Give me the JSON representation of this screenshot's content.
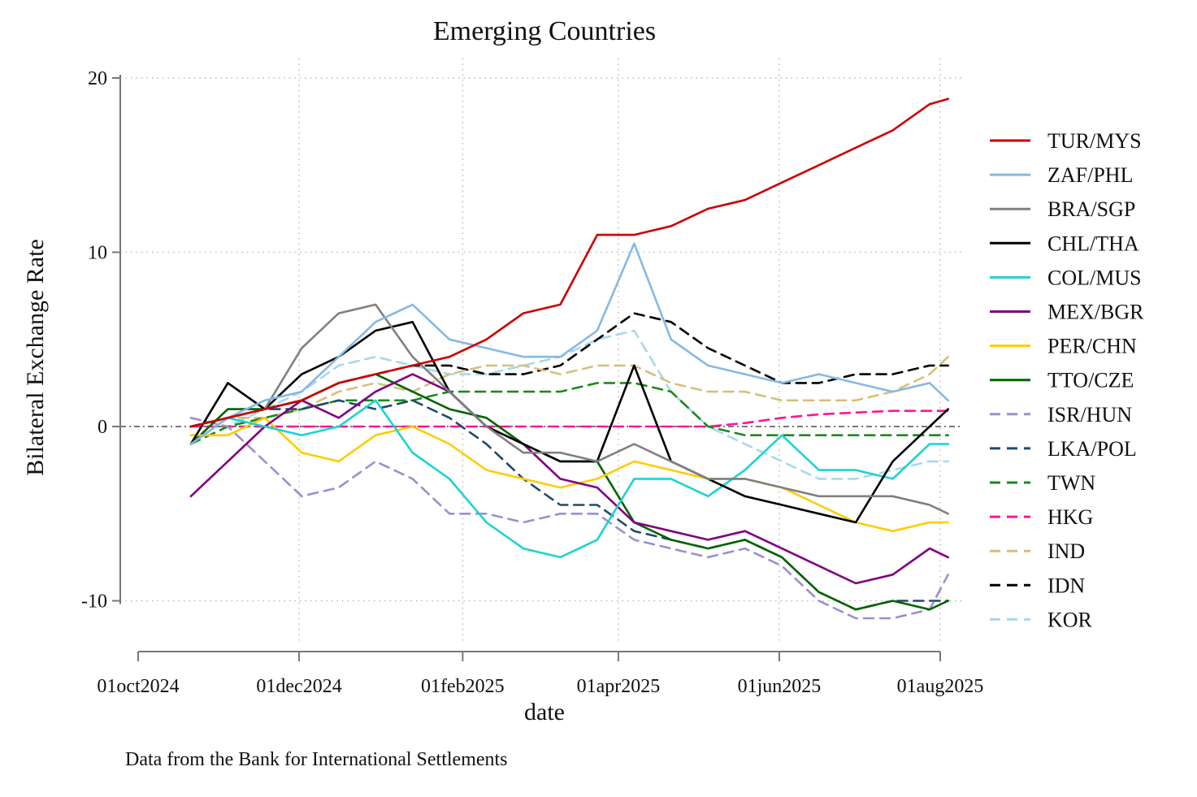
{
  "chart_data": {
    "type": "line",
    "title": "Emerging Countries",
    "xlabel": "date",
    "ylabel": "Bilateral Exchange Rate",
    "note": "Data from the Bank for International Settlements",
    "x_ticks": [
      "01oct2024",
      "01dec2024",
      "01feb2025",
      "01apr2025",
      "01jun2025",
      "01aug2025"
    ],
    "y_ticks": [
      20,
      10,
      0,
      -10
    ],
    "xlim": [
      "2024-10-01",
      "2025-08-01"
    ],
    "ylim": [
      -13,
      21
    ],
    "grid": true,
    "reference_line": 0,
    "legend_position": "right",
    "dates": [
      "2024-10-21",
      "2024-11-04",
      "2024-11-18",
      "2024-12-02",
      "2024-12-16",
      "2024-12-30",
      "2025-01-13",
      "2025-01-27",
      "2025-02-10",
      "2025-02-24",
      "2025-03-10",
      "2025-03-24",
      "2025-04-07",
      "2025-04-21",
      "2025-05-05",
      "2025-05-19",
      "2025-06-02",
      "2025-06-16",
      "2025-06-30",
      "2025-07-14",
      "2025-07-28",
      "2025-08-04"
    ],
    "series": [
      {
        "name": "TUR/MYS",
        "color": "#cc0000",
        "dash": "solid",
        "values": [
          0.0,
          0.5,
          1.0,
          1.5,
          2.5,
          3.0,
          3.5,
          4.0,
          5.0,
          6.5,
          7.0,
          11.0,
          11.0,
          11.5,
          12.5,
          13.0,
          14.0,
          15.0,
          16.0,
          17.0,
          18.5,
          18.8
        ]
      },
      {
        "name": "ZAF/PHL",
        "color": "#85b9e3",
        "dash": "solid",
        "values": [
          -1.0,
          0.5,
          1.5,
          2.0,
          4.0,
          6.0,
          7.0,
          5.0,
          4.5,
          4.0,
          4.0,
          5.5,
          10.5,
          5.0,
          3.5,
          3.0,
          2.5,
          3.0,
          2.5,
          2.0,
          2.5,
          1.5
        ]
      },
      {
        "name": "BRA/SGP",
        "color": "#808080",
        "dash": "solid",
        "values": [
          -1.0,
          0.5,
          1.0,
          4.5,
          6.5,
          7.0,
          4.0,
          2.0,
          0.0,
          -1.5,
          -1.5,
          -2.0,
          -1.0,
          -2.0,
          -3.0,
          -3.0,
          -3.5,
          -4.0,
          -4.0,
          -4.0,
          -4.5,
          -5.0
        ]
      },
      {
        "name": "CHL/THA",
        "color": "#000000",
        "dash": "solid",
        "values": [
          -1.0,
          2.5,
          1.0,
          3.0,
          4.0,
          5.5,
          6.0,
          2.0,
          0.0,
          -1.0,
          -2.0,
          -2.0,
          3.5,
          -2.0,
          -3.0,
          -4.0,
          -4.5,
          -5.0,
          -5.5,
          -2.0,
          0.0,
          1.0
        ]
      },
      {
        "name": "COL/MUS",
        "color": "#1cd3d3",
        "dash": "solid",
        "values": [
          -1.0,
          0.5,
          0.0,
          -0.5,
          0.0,
          1.5,
          -1.5,
          -3.0,
          -5.5,
          -7.0,
          -7.5,
          -6.5,
          -3.0,
          -3.0,
          -4.0,
          -2.5,
          -0.5,
          -2.5,
          -2.5,
          -3.0,
          -1.0,
          -1.0
        ]
      },
      {
        "name": "MEX/BGR",
        "color": "#800080",
        "dash": "solid",
        "values": [
          -4.0,
          -2.0,
          0.0,
          1.5,
          0.5,
          2.0,
          3.0,
          2.0,
          0.0,
          -1.0,
          -3.0,
          -3.5,
          -5.5,
          -6.0,
          -6.5,
          -6.0,
          -7.0,
          -8.0,
          -9.0,
          -8.5,
          -7.0,
          -7.5
        ]
      },
      {
        "name": "PER/CHN",
        "color": "#ffcc00",
        "dash": "solid",
        "values": [
          -0.5,
          -0.5,
          0.5,
          -1.5,
          -2.0,
          -0.5,
          0.0,
          -1.0,
          -2.5,
          -3.0,
          -3.5,
          -3.0,
          -2.0,
          -2.5,
          -3.0,
          -3.0,
          -3.5,
          -4.5,
          -5.5,
          -6.0,
          -5.5,
          -5.5
        ]
      },
      {
        "name": "TTO/CZE",
        "color": "#006400",
        "dash": "solid",
        "values": [
          -1.0,
          1.0,
          1.0,
          1.5,
          2.5,
          3.0,
          2.0,
          1.0,
          0.5,
          -1.0,
          -2.0,
          -2.0,
          -5.5,
          -6.5,
          -7.0,
          -6.5,
          -7.5,
          -9.5,
          -10.5,
          -10.0,
          -10.5,
          -10.0
        ]
      },
      {
        "name": "ISR/HUN",
        "color": "#9b8fcc",
        "dash": "dashed",
        "values": [
          0.5,
          0.0,
          -2.0,
          -4.0,
          -3.5,
          -2.0,
          -3.0,
          -5.0,
          -5.0,
          -5.5,
          -5.0,
          -5.0,
          -6.5,
          -7.0,
          -7.5,
          -7.0,
          -8.0,
          -10.0,
          -11.0,
          -11.0,
          -10.5,
          -8.5
        ]
      },
      {
        "name": "LKA/POL",
        "color": "#1f4a6e",
        "dash": "dashed",
        "values": [
          0.0,
          0.5,
          1.0,
          1.0,
          1.5,
          1.0,
          1.5,
          0.5,
          -1.0,
          -3.0,
          -4.5,
          -4.5,
          -6.0,
          -6.5,
          -7.0,
          -6.5,
          -7.5,
          -9.5,
          -10.5,
          -10.0,
          -10.0,
          -10.0
        ]
      },
      {
        "name": "TWN",
        "color": "#1a8a1a",
        "dash": "dashed",
        "values": [
          -1.0,
          0.0,
          0.5,
          1.0,
          1.5,
          1.5,
          1.5,
          2.0,
          2.0,
          2.0,
          2.0,
          2.5,
          2.5,
          2.0,
          0.0,
          -0.5,
          -0.5,
          -0.5,
          -0.5,
          -0.5,
          -0.5,
          -0.5
        ]
      },
      {
        "name": "HKG",
        "color": "#ff1493",
        "dash": "dashed",
        "values": [
          0.0,
          0.0,
          0.0,
          0.0,
          0.0,
          0.0,
          0.0,
          0.0,
          0.0,
          0.0,
          0.0,
          0.0,
          0.0,
          0.0,
          0.0,
          0.2,
          0.5,
          0.7,
          0.8,
          0.9,
          0.9,
          0.9
        ]
      },
      {
        "name": "IND",
        "color": "#d4c07a",
        "dash": "dashed",
        "values": [
          0.0,
          0.5,
          0.5,
          1.0,
          2.0,
          2.5,
          2.0,
          3.0,
          3.5,
          3.5,
          3.0,
          3.5,
          3.5,
          2.5,
          2.0,
          2.0,
          1.5,
          1.5,
          1.5,
          2.0,
          3.0,
          4.0
        ]
      },
      {
        "name": "IDN",
        "color": "#000000",
        "dash": "dashed",
        "values": [
          0.0,
          0.5,
          1.0,
          1.5,
          2.5,
          3.0,
          3.5,
          3.5,
          3.0,
          3.0,
          3.5,
          5.0,
          6.5,
          6.0,
          4.5,
          3.5,
          2.5,
          2.5,
          3.0,
          3.0,
          3.5,
          3.5
        ]
      },
      {
        "name": "KOR",
        "color": "#a8d8ea",
        "dash": "dashed",
        "values": [
          -1.0,
          0.0,
          1.0,
          2.0,
          3.5,
          4.0,
          3.5,
          3.0,
          3.0,
          3.5,
          4.0,
          5.0,
          5.5,
          2.0,
          0.0,
          -1.0,
          -2.0,
          -3.0,
          -3.0,
          -2.5,
          -2.0,
          -2.0
        ]
      }
    ]
  }
}
